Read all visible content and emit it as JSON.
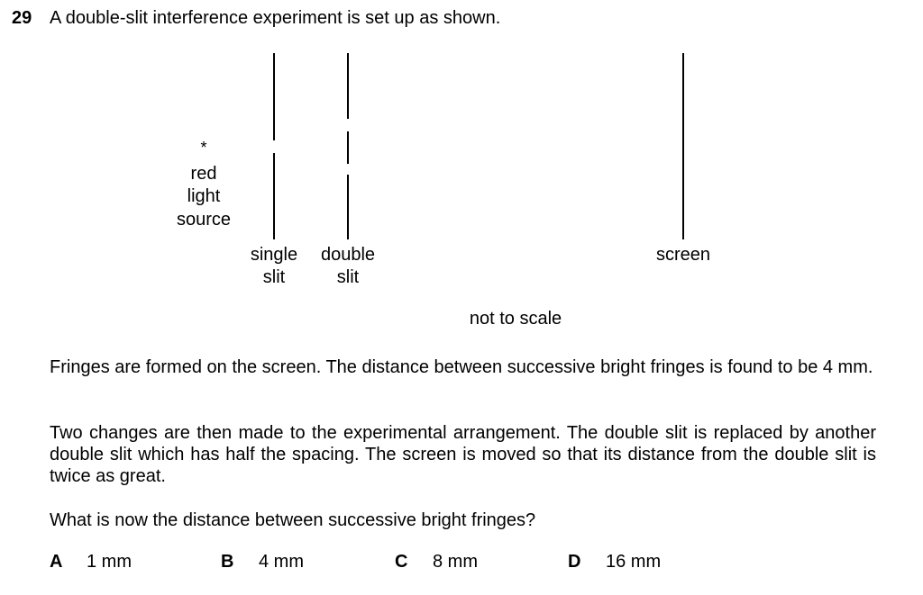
{
  "question": {
    "number": "29",
    "text": "A double-slit interference experiment is set up as shown."
  },
  "diagram": {
    "source_marker": "*",
    "source_label_line1": "red",
    "source_label_line2": "light",
    "source_label_line3": "source",
    "single_slit_line1": "single",
    "single_slit_line2": "slit",
    "double_slit_line1": "double",
    "double_slit_line2": "slit",
    "screen_label": "screen",
    "scale_note": "not to scale"
  },
  "paragraphs": {
    "p1": "Fringes are formed on the screen. The distance between successive bright fringes is found to be 4 mm.",
    "p2": "Two changes are then made to the experimental arrangement. The double slit is replaced by another double slit which has half the spacing. The screen is moved so that its distance from the double slit is twice as great.",
    "p3": "What is now the distance between successive bright fringes?"
  },
  "options": [
    {
      "letter": "A",
      "value": "1 mm"
    },
    {
      "letter": "B",
      "value": "4 mm"
    },
    {
      "letter": "C",
      "value": "8 mm"
    },
    {
      "letter": "D",
      "value": "16 mm"
    }
  ]
}
